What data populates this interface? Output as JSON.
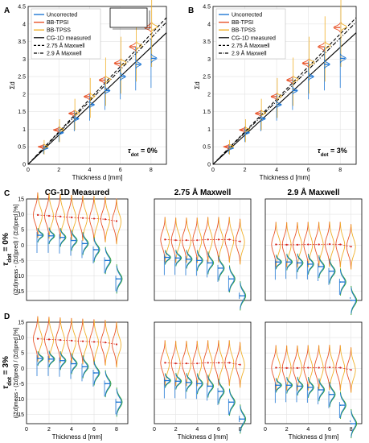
{
  "colors": {
    "uncorrected": "#1f77d4",
    "bb_tpsi": "#e8542a",
    "bb_tpss": "#f0b02a",
    "measured": "#000000",
    "diff_points": "#d6261b"
  },
  "top_panels": {
    "xlabel": "Thickness d [mm]",
    "ylabel": "Σd",
    "legend": [
      {
        "label": "Uncorrected",
        "style": "line",
        "color": "#1f77d4"
      },
      {
        "label": "BB-TPSI",
        "style": "line",
        "color": "#e8542a"
      },
      {
        "label": "BB-TPSS",
        "style": "line",
        "color": "#f0b02a"
      },
      {
        "label": "CG-1D measured",
        "style": "solid",
        "color": "#000000"
      },
      {
        "label": "2.75 Å Maxwell",
        "style": "dashed",
        "color": "#000000"
      },
      {
        "label": "2.9 Å Maxwell",
        "style": "dashdot",
        "color": "#000000"
      }
    ],
    "x_ticks": [
      "0",
      "2",
      "4",
      "6",
      "8"
    ],
    "y_ticks": [
      "0",
      "0.5",
      "1",
      "1.5",
      "2",
      "2.5",
      "3",
      "3.5",
      "4",
      "4.5"
    ]
  },
  "bottom_panels": {
    "row_labels": [
      "τdot = 0%",
      "τdot = 3%"
    ],
    "row_label_main": "τ",
    "row_label_sub": "dot",
    "row_label_values": [
      " = 0%",
      " = 3%"
    ],
    "ylabel_text": "((Σd)meas - (Σd)pred) / (Σd)pred [%]",
    "col_titles": [
      "CG-1D Measured",
      "2.75 Å Maxwell",
      "2.9 Å Maxwell"
    ],
    "xlabel": "Thickness d [mm]",
    "x_ticks": [
      "0",
      "2",
      "4",
      "6",
      "8"
    ],
    "y_ticks": [
      "-15",
      "-10",
      "-5",
      "0",
      "5",
      "10",
      "15"
    ]
  },
  "chart_data": [
    {
      "panel": "A",
      "type": "line",
      "annotation": "τdot = 0%",
      "annotation_main": "τ",
      "annotation_sub": "dot",
      "annotation_value": " = 0%",
      "xlabel": "Thickness d [mm]",
      "ylabel": "Σd",
      "xlim": [
        0,
        9
      ],
      "ylim": [
        0,
        4.5
      ],
      "grid": true,
      "legend_position": "top-left",
      "lines": [
        {
          "name": "CG-1D measured",
          "style": "solid",
          "x": [
            0,
            9
          ],
          "y": [
            0,
            3.75
          ]
        },
        {
          "name": "2.75 Å Maxwell",
          "style": "dashed",
          "x": [
            0,
            9
          ],
          "y": [
            0,
            4.18
          ]
        },
        {
          "name": "2.9 Å Maxwell",
          "style": "dashdot",
          "x": [
            0,
            9
          ],
          "y": [
            0,
            4.05
          ]
        }
      ],
      "distributions": {
        "x": [
          1,
          2,
          3,
          4,
          5,
          6,
          7,
          8
        ],
        "uncorrected_means": [
          0.46,
          0.9,
          1.3,
          1.7,
          2.1,
          2.5,
          2.85,
          3.02
        ],
        "bb_tpsi_means": [
          0.5,
          0.98,
          1.45,
          1.93,
          2.4,
          2.88,
          3.35,
          3.9
        ],
        "bb_tpss_means": [
          0.51,
          0.99,
          1.46,
          1.94,
          2.42,
          2.9,
          3.38,
          3.92
        ]
      }
    },
    {
      "panel": "B",
      "type": "line",
      "annotation": "τdot = 3%",
      "annotation_main": "τ",
      "annotation_sub": "dot",
      "annotation_value": " = 3%",
      "xlabel": "Thickness d [mm]",
      "ylabel": "Σd",
      "xlim": [
        0,
        9
      ],
      "ylim": [
        0,
        4.5
      ],
      "grid": true,
      "legend_position": "top-left",
      "lines": [
        {
          "name": "CG-1D measured",
          "style": "solid",
          "x": [
            0,
            9
          ],
          "y": [
            0,
            3.75
          ]
        },
        {
          "name": "2.75 Å Maxwell",
          "style": "dashed",
          "x": [
            0,
            9
          ],
          "y": [
            0,
            4.18
          ]
        },
        {
          "name": "2.9 Å Maxwell",
          "style": "dashdot",
          "x": [
            0,
            9
          ],
          "y": [
            0,
            4.05
          ]
        }
      ],
      "distributions": {
        "x": [
          1,
          2,
          3,
          4,
          5,
          6,
          7,
          8
        ],
        "uncorrected_means": [
          0.46,
          0.9,
          1.3,
          1.7,
          2.1,
          2.5,
          2.85,
          3.02
        ],
        "bb_tpsi_means": [
          0.5,
          0.98,
          1.45,
          1.93,
          2.4,
          2.88,
          3.35,
          3.9
        ],
        "bb_tpss_means": [
          0.51,
          0.99,
          1.46,
          1.94,
          2.42,
          2.9,
          3.38,
          3.92
        ]
      }
    },
    {
      "panel": "C",
      "type": "scatter",
      "ylabel": "((Σd)meas - (Σd)pred) / (Σd)pred [%]",
      "xlabel": "Thickness d [mm]",
      "xlim": [
        0,
        9
      ],
      "ylim": [
        -18,
        15
      ],
      "grid": true,
      "x": [
        1,
        2,
        3,
        4,
        5,
        6,
        7,
        8
      ],
      "subplots": [
        {
          "title": "CG-1D Measured",
          "uncorrected": [
            3.2,
            3.0,
            2.5,
            1.5,
            0.5,
            -1.5,
            -5.0,
            -11.0
          ],
          "bb_tpsi": [
            9.8,
            9.5,
            9.3,
            9.0,
            8.8,
            8.6,
            8.4,
            7.8
          ],
          "bb_tpss": [
            9.6,
            9.4,
            9.2,
            8.9,
            8.7,
            8.5,
            8.2,
            7.6
          ]
        },
        {
          "title": "2.75 Å Maxwell",
          "uncorrected": [
            -4.0,
            -4.2,
            -4.6,
            -5.0,
            -5.8,
            -7.5,
            -11.0,
            -16.5
          ],
          "bb_tpsi": [
            1.8,
            1.6,
            1.6,
            1.6,
            1.8,
            1.8,
            1.8,
            1.2
          ],
          "bb_tpss": [
            1.6,
            1.5,
            1.5,
            1.5,
            1.7,
            1.7,
            1.6,
            1.0
          ]
        },
        {
          "title": "2.9 Å Maxwell",
          "uncorrected": [
            -5.5,
            -5.5,
            -5.8,
            -6.2,
            -7.0,
            -8.5,
            -12.0,
            -18.0
          ],
          "bb_tpsi": [
            0.2,
            0.1,
            0.1,
            0.2,
            0.2,
            0.3,
            0.2,
            -0.5
          ],
          "bb_tpss": [
            0.0,
            0.0,
            0.0,
            0.1,
            0.1,
            0.2,
            0.0,
            -0.6
          ]
        }
      ]
    },
    {
      "panel": "D",
      "type": "scatter",
      "ylabel": "((Σd)meas - (Σd)pred) / (Σd)pred [%]",
      "xlabel": "Thickness d [mm]",
      "xlim": [
        0,
        9
      ],
      "ylim": [
        -18,
        15
      ],
      "grid": true,
      "x": [
        1,
        2,
        3,
        4,
        5,
        6,
        7,
        8
      ],
      "subplots": [
        {
          "title": "CG-1D Measured",
          "uncorrected": [
            3.2,
            3.0,
            2.5,
            1.5,
            0.5,
            -1.5,
            -5.0,
            -11.0
          ],
          "bb_tpsi": [
            9.6,
            9.4,
            9.2,
            9.0,
            8.8,
            8.6,
            8.4,
            7.8
          ],
          "bb_tpss": [
            9.4,
            9.2,
            9.0,
            8.8,
            8.6,
            8.4,
            8.2,
            7.6
          ]
        },
        {
          "title": "2.75 Å Maxwell",
          "uncorrected": [
            -4.0,
            -4.2,
            -4.6,
            -5.0,
            -5.8,
            -7.5,
            -11.0,
            -16.5
          ],
          "bb_tpsi": [
            1.8,
            1.6,
            1.6,
            1.6,
            1.8,
            1.8,
            1.8,
            1.2
          ],
          "bb_tpss": [
            1.6,
            1.5,
            1.5,
            1.5,
            1.7,
            1.7,
            1.6,
            1.0
          ]
        },
        {
          "title": "2.9 Å Maxwell",
          "uncorrected": [
            -5.5,
            -5.5,
            -5.8,
            -6.2,
            -7.0,
            -8.5,
            -12.0,
            -18.0
          ],
          "bb_tpsi": [
            0.2,
            0.1,
            0.1,
            0.2,
            0.2,
            0.3,
            0.2,
            -0.5
          ],
          "bb_tpss": [
            0.0,
            0.0,
            0.0,
            0.1,
            0.1,
            0.2,
            0.0,
            -0.6
          ]
        }
      ]
    }
  ]
}
